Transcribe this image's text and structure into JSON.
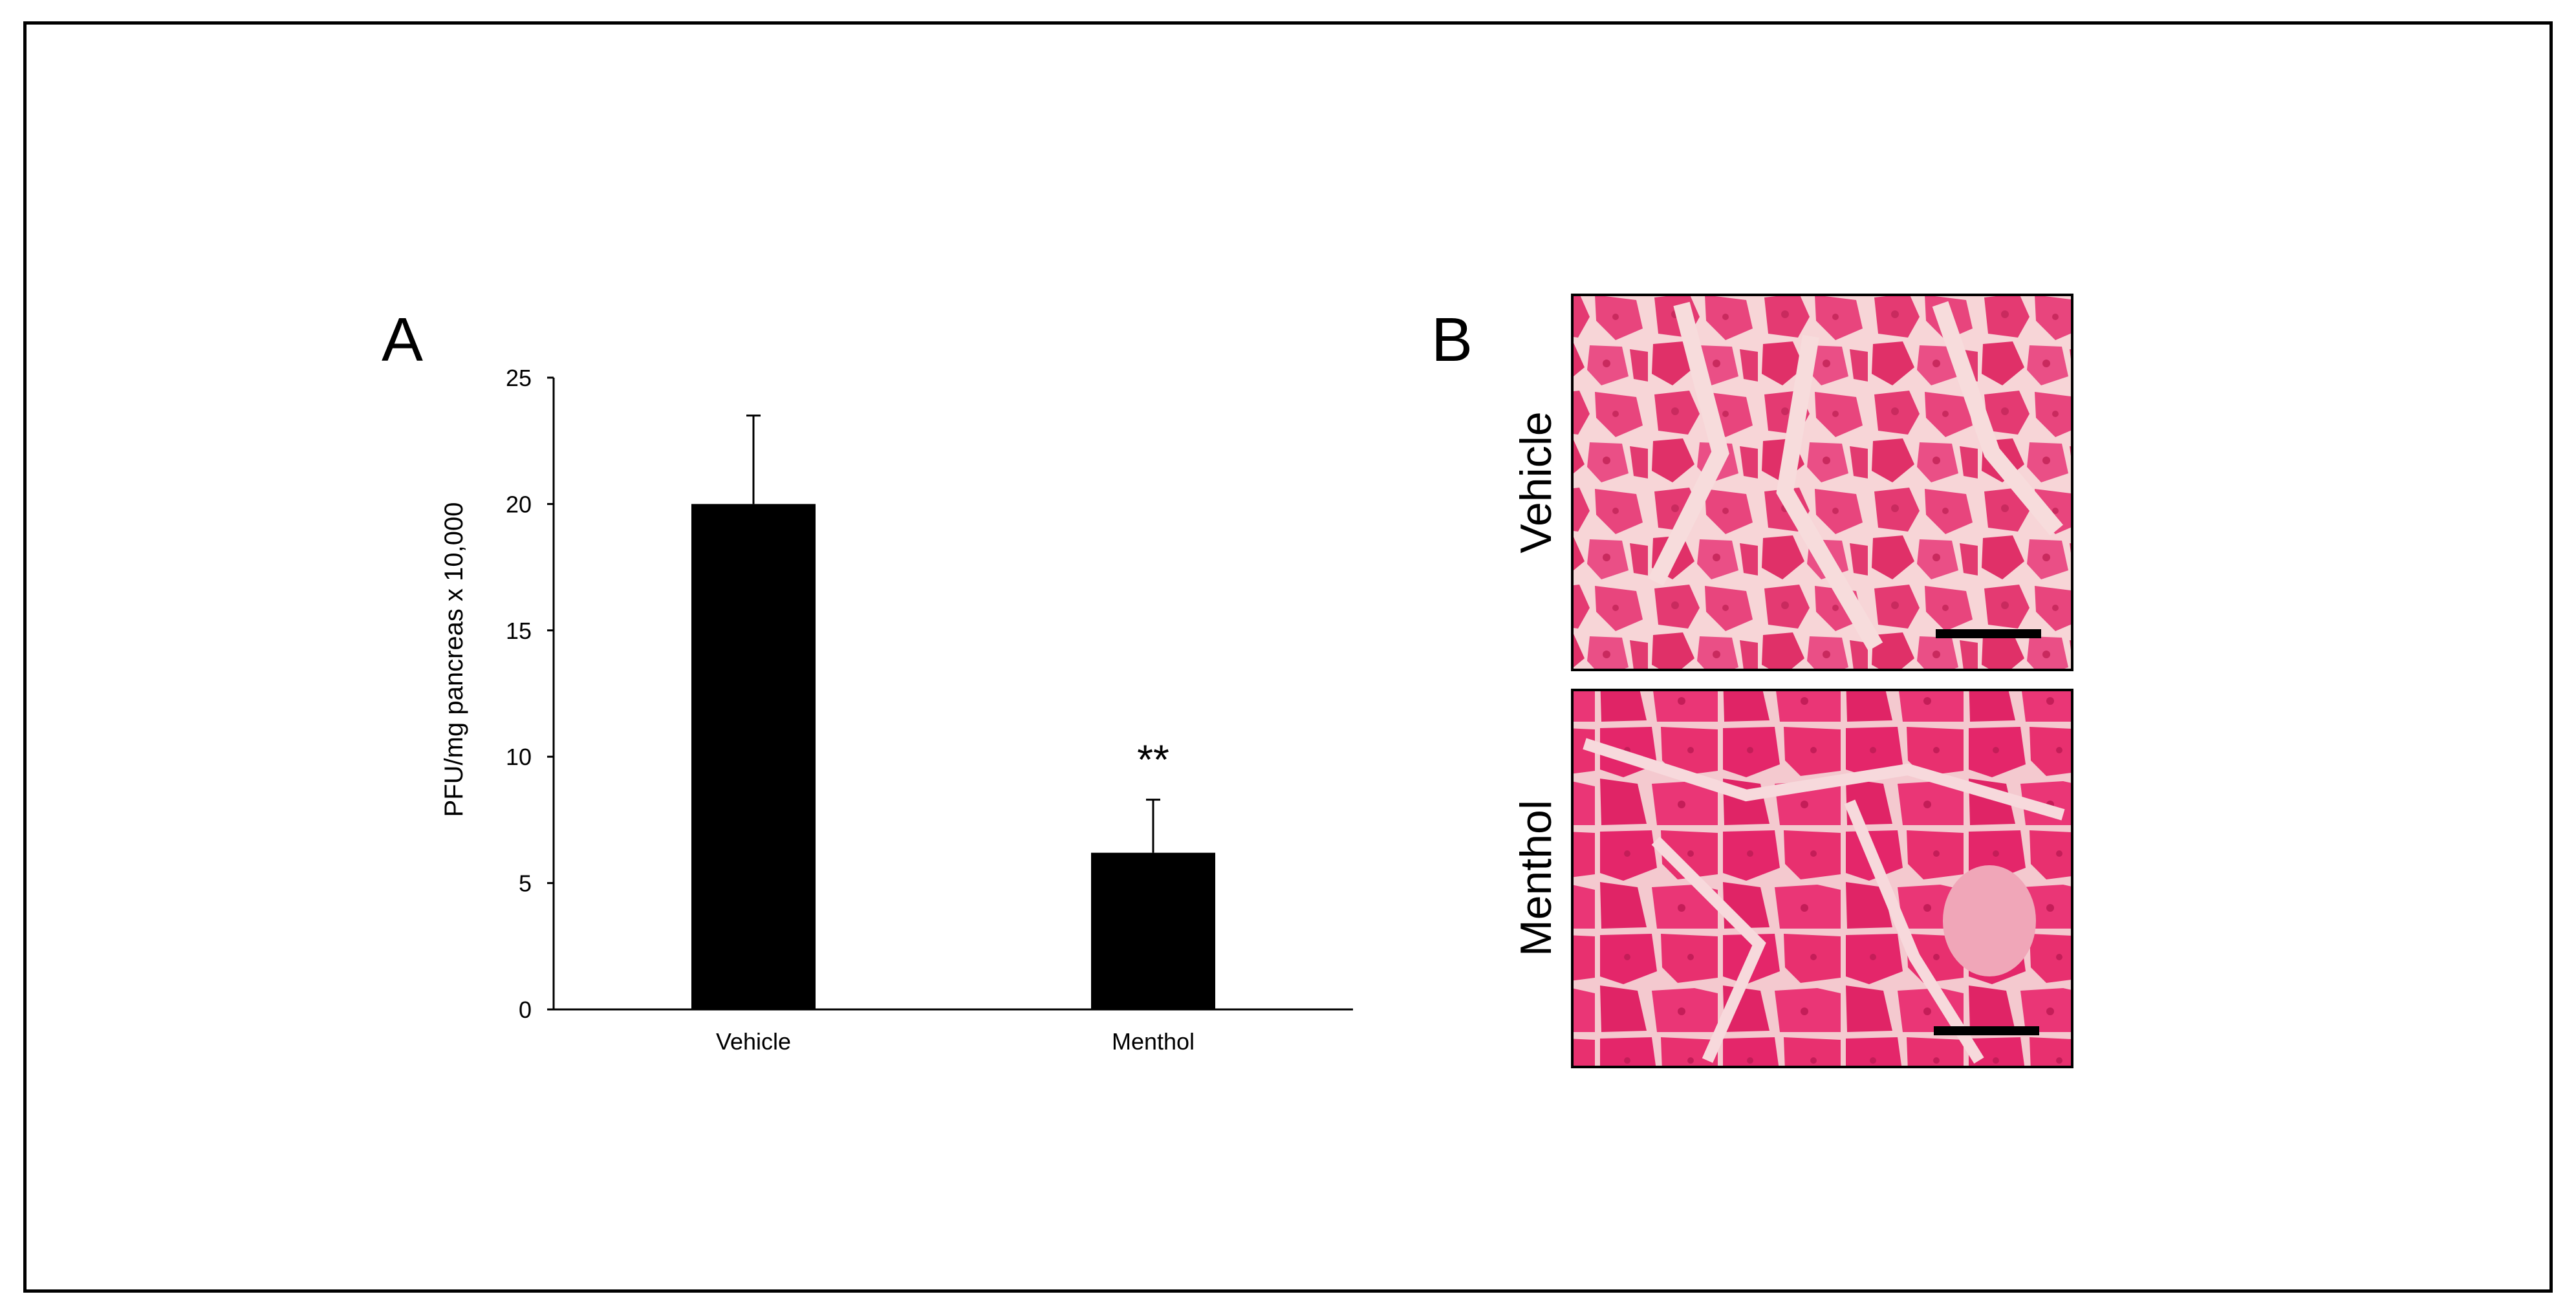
{
  "panels": {
    "a_label": "A",
    "b_label": "B"
  },
  "chart_data": {
    "type": "bar",
    "categories": [
      "Vehicle",
      "Menthol"
    ],
    "series": [
      {
        "values": [
          20.0,
          6.2
        ],
        "errors": [
          3.5,
          2.1
        ]
      }
    ],
    "ylabel": "PFU/mg pancreas x 10,000",
    "ylim": [
      0,
      25
    ],
    "yticks": [
      0,
      5,
      10,
      15,
      20,
      25
    ],
    "annotations": [
      {
        "category": "Menthol",
        "text": "**"
      }
    ],
    "grid": false,
    "bar_color": "#000000"
  },
  "micrographs": [
    {
      "label": "Vehicle"
    },
    {
      "label": "Menthol"
    }
  ],
  "colors": {
    "tissue_stain": "#e8336f",
    "tissue_background": "#f6d6d6"
  }
}
